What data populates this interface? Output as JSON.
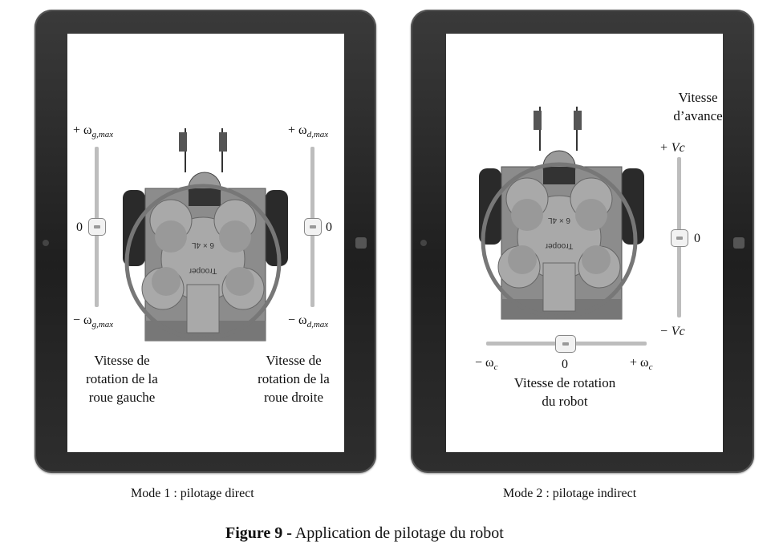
{
  "mode1": {
    "caption": "Mode 1 : pilotage direct",
    "left_top": "+ ω",
    "left_top_sub": "g,max",
    "left_mid": "0",
    "left_bot": "− ω",
    "left_bot_sub": "g,max",
    "right_top": "+ ω",
    "right_top_sub": "d,max",
    "right_mid": "0",
    "right_bot": "− ω",
    "right_bot_sub": "d,max",
    "left_desc": [
      "Vitesse de",
      "rotation de la",
      "roue gauche"
    ],
    "right_desc": [
      "Vitesse de",
      "rotation de la",
      "roue droite"
    ]
  },
  "mode2": {
    "caption": "Mode 2 : pilotage indirect",
    "v_title": [
      "Vitesse",
      "d’avance"
    ],
    "v_top": "+ Vc",
    "v_mid": "0",
    "v_bot": "− Vc",
    "h_left": "− ω",
    "h_left_sub": "c",
    "h_mid": "0",
    "h_right": "+ ω",
    "h_right_sub": "c",
    "h_desc": [
      "Vitesse de rotation",
      "du robot"
    ]
  },
  "robot_text": [
    "6 × 4L",
    "Trooper"
  ],
  "figure": {
    "label": "Figure 9 -",
    "text": " Application de pilotage du robot"
  }
}
